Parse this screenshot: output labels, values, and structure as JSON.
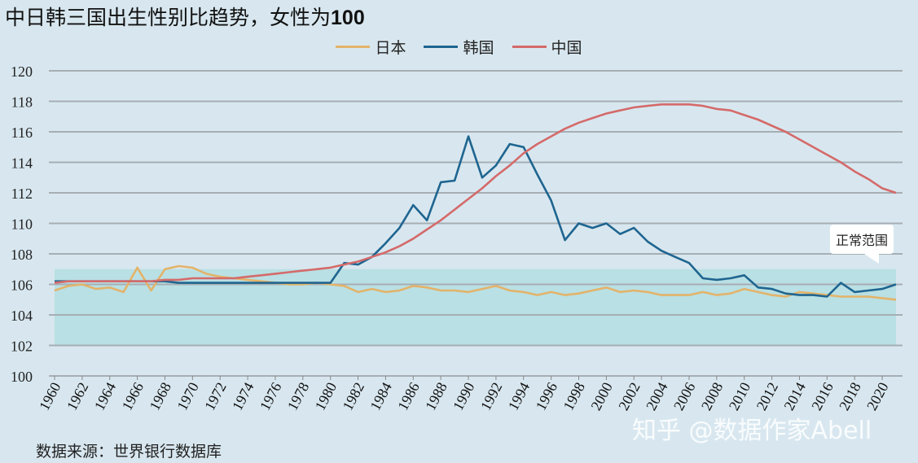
{
  "chart_data": {
    "type": "line",
    "title_main": "中日韩三国出生性别比趋势，女性为",
    "title_num": "100",
    "x": [
      1960,
      1961,
      1962,
      1963,
      1964,
      1965,
      1966,
      1967,
      1968,
      1969,
      1970,
      1971,
      1972,
      1973,
      1974,
      1975,
      1976,
      1977,
      1978,
      1979,
      1980,
      1981,
      1982,
      1983,
      1984,
      1985,
      1986,
      1987,
      1988,
      1989,
      1990,
      1991,
      1992,
      1993,
      1994,
      1995,
      1996,
      1997,
      1998,
      1999,
      2000,
      2001,
      2002,
      2003,
      2004,
      2005,
      2006,
      2007,
      2008,
      2009,
      2010,
      2011,
      2012,
      2013,
      2014,
      2015,
      2016,
      2017,
      2018,
      2019,
      2020,
      2021
    ],
    "x_tick_labels": [
      "1960",
      "1962",
      "1964",
      "1966",
      "1968",
      "1970",
      "1972",
      "1974",
      "1976",
      "1978",
      "1980",
      "1982",
      "1984",
      "1986",
      "1988",
      "1990",
      "1992",
      "1994",
      "1996",
      "1998",
      "2000",
      "2002",
      "2004",
      "2006",
      "2008",
      "2010",
      "2012",
      "2014",
      "2016",
      "2018",
      "2020"
    ],
    "y_tick_labels": [
      "100",
      "102",
      "104",
      "106",
      "108",
      "110",
      "112",
      "114",
      "116",
      "118",
      "120"
    ],
    "ylim": [
      100,
      120
    ],
    "grid": true,
    "legend_position": "top-center",
    "normal_range": [
      102,
      107
    ],
    "normal_range_label": "正常范围",
    "series": [
      {
        "name": "日本",
        "color": "#e3b36a",
        "values": [
          105.6,
          105.9,
          106.0,
          105.7,
          105.8,
          105.5,
          107.1,
          105.6,
          107.0,
          107.2,
          107.1,
          106.7,
          106.5,
          106.4,
          106.3,
          106.2,
          106.1,
          106.0,
          106.0,
          106.1,
          106.0,
          105.9,
          105.5,
          105.7,
          105.5,
          105.6,
          105.9,
          105.8,
          105.6,
          105.6,
          105.5,
          105.7,
          105.9,
          105.6,
          105.5,
          105.3,
          105.5,
          105.3,
          105.4,
          105.6,
          105.8,
          105.5,
          105.6,
          105.5,
          105.3,
          105.3,
          105.3,
          105.5,
          105.3,
          105.4,
          105.7,
          105.5,
          105.3,
          105.2,
          105.5,
          105.4,
          105.3,
          105.2,
          105.2,
          105.2,
          105.1,
          105.0
        ]
      },
      {
        "name": "韩国",
        "color": "#1f6590",
        "values": [
          106.2,
          106.2,
          106.2,
          106.2,
          106.2,
          106.2,
          106.2,
          106.2,
          106.2,
          106.1,
          106.1,
          106.1,
          106.1,
          106.1,
          106.1,
          106.1,
          106.1,
          106.1,
          106.1,
          106.1,
          106.1,
          107.4,
          107.3,
          107.8,
          108.7,
          109.7,
          111.2,
          110.2,
          112.7,
          112.8,
          115.7,
          113.0,
          113.8,
          115.2,
          115.0,
          113.2,
          111.5,
          108.9,
          110.0,
          109.7,
          110.0,
          109.3,
          109.7,
          108.8,
          108.2,
          107.8,
          107.4,
          106.4,
          106.3,
          106.4,
          106.6,
          105.8,
          105.7,
          105.4,
          105.3,
          105.3,
          105.2,
          106.1,
          105.5,
          105.6,
          105.7,
          106.0
        ]
      },
      {
        "name": "中国",
        "color": "#d46a6a",
        "values": [
          106.1,
          106.2,
          106.2,
          106.2,
          106.2,
          106.2,
          106.2,
          106.2,
          106.3,
          106.3,
          106.4,
          106.4,
          106.4,
          106.4,
          106.5,
          106.6,
          106.7,
          106.8,
          106.9,
          107.0,
          107.1,
          107.3,
          107.5,
          107.8,
          108.1,
          108.5,
          109.0,
          109.6,
          110.2,
          110.9,
          111.6,
          112.3,
          113.1,
          113.8,
          114.6,
          115.2,
          115.7,
          116.2,
          116.6,
          116.9,
          117.2,
          117.4,
          117.6,
          117.7,
          117.8,
          117.8,
          117.8,
          117.7,
          117.5,
          117.4,
          117.1,
          116.8,
          116.4,
          116.0,
          115.5,
          115.0,
          114.5,
          114.0,
          113.4,
          112.9,
          112.3,
          112.0
        ]
      }
    ]
  },
  "source": "数据来源：世界银行数据库",
  "watermark": "知乎 @数据作家Abell"
}
